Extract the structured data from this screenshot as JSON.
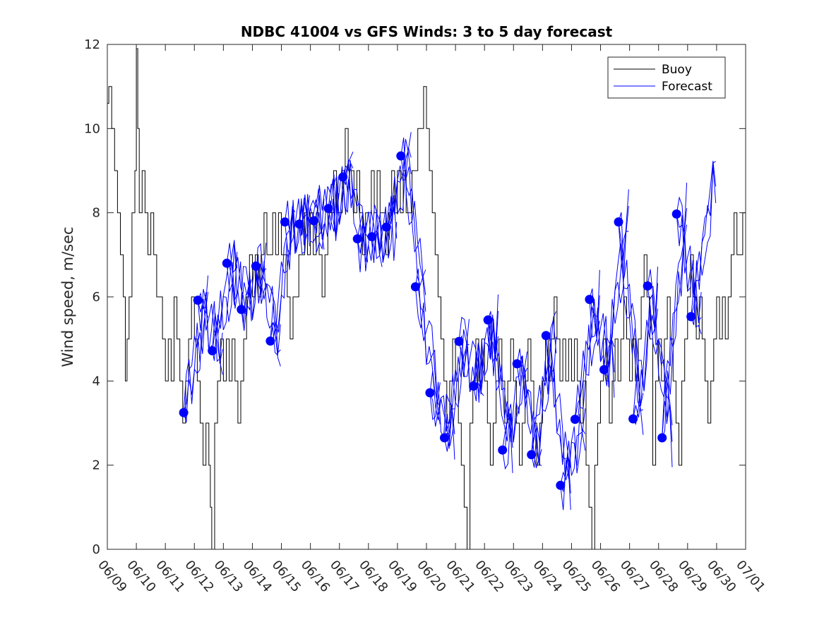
{
  "chart_data": {
    "type": "line",
    "title": "NDBC 41004 vs GFS Winds: 3 to 5 day forecast",
    "xlabel": "",
    "ylabel": "Wind speed, m/sec",
    "x_unit": "day index (0 = 06/09)",
    "x_ticks": [
      "06/09",
      "06/10",
      "06/11",
      "06/12",
      "06/13",
      "06/14",
      "06/15",
      "06/16",
      "06/17",
      "06/18",
      "06/19",
      "06/20",
      "06/21",
      "06/22",
      "06/23",
      "06/24",
      "06/25",
      "06/26",
      "06/27",
      "06/28",
      "06/29",
      "06/30",
      "07/01"
    ],
    "y_ticks": [
      "0",
      "2",
      "4",
      "6",
      "8",
      "10",
      "12"
    ],
    "xlim": [
      0,
      22
    ],
    "ylim": [
      0,
      12
    ],
    "grid": false,
    "legend": {
      "placement": "top-right",
      "entries": [
        "Buoy",
        "Forecast"
      ]
    },
    "colors": {
      "buoy": "#000000",
      "forecast": "#0000ff",
      "markers": "#0000ff"
    },
    "buoy_anchors": [
      [
        0.0,
        10.6
      ],
      [
        0.05,
        11
      ],
      [
        0.15,
        10
      ],
      [
        0.25,
        9
      ],
      [
        0.35,
        8
      ],
      [
        0.45,
        7
      ],
      [
        0.55,
        6
      ],
      [
        0.62,
        4
      ],
      [
        0.68,
        5
      ],
      [
        0.75,
        6
      ],
      [
        0.85,
        8
      ],
      [
        0.95,
        9
      ],
      [
        1.0,
        11.9
      ],
      [
        1.05,
        10
      ],
      [
        1.1,
        8
      ],
      [
        1.2,
        9
      ],
      [
        1.3,
        8
      ],
      [
        1.4,
        7
      ],
      [
        1.5,
        8
      ],
      [
        1.6,
        7
      ],
      [
        1.7,
        6
      ],
      [
        1.8,
        6
      ],
      [
        1.9,
        5
      ],
      [
        2.0,
        4
      ],
      [
        2.1,
        5
      ],
      [
        2.2,
        4
      ],
      [
        2.3,
        6
      ],
      [
        2.4,
        5
      ],
      [
        2.5,
        4
      ],
      [
        2.6,
        3
      ],
      [
        2.7,
        4
      ],
      [
        2.8,
        5
      ],
      [
        2.9,
        6
      ],
      [
        3.0,
        5
      ],
      [
        3.1,
        4
      ],
      [
        3.2,
        3
      ],
      [
        3.3,
        2
      ],
      [
        3.4,
        3
      ],
      [
        3.5,
        2
      ],
      [
        3.55,
        1
      ],
      [
        3.6,
        0
      ],
      [
        3.7,
        3
      ],
      [
        3.8,
        4
      ],
      [
        3.9,
        5
      ],
      [
        4.0,
        4
      ],
      [
        4.1,
        5
      ],
      [
        4.2,
        4
      ],
      [
        4.3,
        5
      ],
      [
        4.4,
        4
      ],
      [
        4.5,
        3
      ],
      [
        4.6,
        4
      ],
      [
        4.7,
        5
      ],
      [
        4.8,
        6
      ],
      [
        4.9,
        7
      ],
      [
        5.0,
        6
      ],
      [
        5.1,
        7
      ],
      [
        5.2,
        6
      ],
      [
        5.3,
        7
      ],
      [
        5.4,
        8
      ],
      [
        5.5,
        7
      ],
      [
        5.6,
        7
      ],
      [
        5.7,
        8
      ],
      [
        5.8,
        7
      ],
      [
        5.9,
        8
      ],
      [
        6.0,
        7
      ],
      [
        6.1,
        7
      ],
      [
        6.2,
        6
      ],
      [
        6.3,
        5
      ],
      [
        6.4,
        6
      ],
      [
        6.5,
        6
      ],
      [
        6.6,
        7
      ],
      [
        6.7,
        7
      ],
      [
        6.8,
        8
      ],
      [
        6.9,
        7
      ],
      [
        7.0,
        8
      ],
      [
        7.1,
        7
      ],
      [
        7.2,
        8
      ],
      [
        7.3,
        7
      ],
      [
        7.4,
        6
      ],
      [
        7.5,
        7
      ],
      [
        7.6,
        8
      ],
      [
        7.7,
        8
      ],
      [
        7.8,
        9
      ],
      [
        7.9,
        8
      ],
      [
        8.0,
        8
      ],
      [
        8.1,
        9
      ],
      [
        8.2,
        10
      ],
      [
        8.3,
        9
      ],
      [
        8.4,
        9
      ],
      [
        8.5,
        8
      ],
      [
        8.6,
        9
      ],
      [
        8.7,
        8
      ],
      [
        8.8,
        7
      ],
      [
        8.9,
        8
      ],
      [
        9.0,
        8
      ],
      [
        9.1,
        9
      ],
      [
        9.2,
        8
      ],
      [
        9.3,
        9
      ],
      [
        9.4,
        8
      ],
      [
        9.5,
        8
      ],
      [
        9.6,
        7
      ],
      [
        9.7,
        8
      ],
      [
        9.8,
        9
      ],
      [
        9.9,
        8
      ],
      [
        10.0,
        9
      ],
      [
        10.1,
        8
      ],
      [
        10.2,
        9
      ],
      [
        10.3,
        8
      ],
      [
        10.4,
        8
      ],
      [
        10.5,
        9
      ],
      [
        10.6,
        9
      ],
      [
        10.7,
        10
      ],
      [
        10.8,
        10
      ],
      [
        10.9,
        11
      ],
      [
        11.0,
        10
      ],
      [
        11.1,
        9
      ],
      [
        11.2,
        8
      ],
      [
        11.3,
        7
      ],
      [
        11.4,
        6
      ],
      [
        11.5,
        5
      ],
      [
        11.6,
        4
      ],
      [
        11.7,
        3
      ],
      [
        11.8,
        4
      ],
      [
        11.9,
        5
      ],
      [
        12.0,
        4
      ],
      [
        12.1,
        3
      ],
      [
        12.2,
        2
      ],
      [
        12.3,
        1
      ],
      [
        12.4,
        0
      ],
      [
        12.5,
        3
      ],
      [
        12.6,
        4
      ],
      [
        12.7,
        5
      ],
      [
        12.8,
        4
      ],
      [
        12.9,
        5
      ],
      [
        13.0,
        4
      ],
      [
        13.1,
        3
      ],
      [
        13.2,
        2
      ],
      [
        13.3,
        3
      ],
      [
        13.4,
        4
      ],
      [
        13.5,
        5
      ],
      [
        13.6,
        4
      ],
      [
        13.7,
        3
      ],
      [
        13.8,
        4
      ],
      [
        13.9,
        5
      ],
      [
        14.0,
        4
      ],
      [
        14.1,
        3
      ],
      [
        14.2,
        2
      ],
      [
        14.3,
        3
      ],
      [
        14.4,
        4
      ],
      [
        14.5,
        5
      ],
      [
        14.6,
        4
      ],
      [
        14.7,
        3
      ],
      [
        14.8,
        2
      ],
      [
        14.9,
        3
      ],
      [
        15.0,
        4
      ],
      [
        15.1,
        5
      ],
      [
        15.2,
        4
      ],
      [
        15.3,
        5
      ],
      [
        15.4,
        6
      ],
      [
        15.5,
        5
      ],
      [
        15.6,
        4
      ],
      [
        15.7,
        5
      ],
      [
        15.8,
        4
      ],
      [
        15.9,
        5
      ],
      [
        16.0,
        4
      ],
      [
        16.1,
        5
      ],
      [
        16.2,
        4
      ],
      [
        16.3,
        3
      ],
      [
        16.4,
        4
      ],
      [
        16.5,
        2
      ],
      [
        16.6,
        1
      ],
      [
        16.7,
        0
      ],
      [
        16.8,
        2
      ],
      [
        16.9,
        3
      ],
      [
        17.0,
        4
      ],
      [
        17.1,
        5
      ],
      [
        17.2,
        4
      ],
      [
        17.3,
        3
      ],
      [
        17.4,
        4
      ],
      [
        17.5,
        5
      ],
      [
        17.6,
        4
      ],
      [
        17.7,
        5
      ],
      [
        17.8,
        6
      ],
      [
        17.9,
        5
      ],
      [
        18.0,
        4
      ],
      [
        18.1,
        5
      ],
      [
        18.2,
        4
      ],
      [
        18.3,
        5
      ],
      [
        18.4,
        6
      ],
      [
        18.5,
        7
      ],
      [
        18.6,
        6
      ],
      [
        18.7,
        5
      ],
      [
        18.8,
        2
      ],
      [
        18.9,
        4
      ],
      [
        19.0,
        5
      ],
      [
        19.1,
        4
      ],
      [
        19.2,
        5
      ],
      [
        19.3,
        6
      ],
      [
        19.4,
        5
      ],
      [
        19.5,
        4
      ],
      [
        19.6,
        3
      ],
      [
        19.7,
        2
      ],
      [
        19.8,
        4
      ],
      [
        19.9,
        5
      ],
      [
        20.0,
        6
      ],
      [
        20.1,
        7
      ],
      [
        20.2,
        6
      ],
      [
        20.3,
        5
      ],
      [
        20.4,
        6
      ],
      [
        20.5,
        5
      ],
      [
        20.6,
        4
      ],
      [
        20.7,
        3
      ],
      [
        20.8,
        4
      ],
      [
        20.9,
        5
      ],
      [
        21.0,
        6
      ],
      [
        21.1,
        5
      ],
      [
        21.2,
        6
      ],
      [
        21.3,
        5
      ],
      [
        21.4,
        6
      ],
      [
        21.5,
        7
      ],
      [
        21.6,
        8
      ],
      [
        21.7,
        7
      ],
      [
        21.8,
        7
      ],
      [
        21.9,
        8
      ],
      [
        22.0,
        8
      ]
    ],
    "forecast_markers": [
      [
        2.63,
        3.25
      ],
      [
        3.12,
        5.92
      ],
      [
        3.62,
        4.72
      ],
      [
        4.12,
        6.8
      ],
      [
        4.62,
        5.7
      ],
      [
        5.12,
        6.73
      ],
      [
        5.62,
        4.95
      ],
      [
        6.12,
        7.78
      ],
      [
        6.62,
        7.73
      ],
      [
        7.12,
        7.81
      ],
      [
        7.62,
        8.1
      ],
      [
        8.12,
        8.85
      ],
      [
        8.62,
        7.38
      ],
      [
        9.12,
        7.43
      ],
      [
        9.62,
        7.66
      ],
      [
        10.12,
        9.35
      ],
      [
        10.62,
        6.24
      ],
      [
        11.12,
        3.72
      ],
      [
        11.62,
        2.65
      ],
      [
        12.12,
        4.94
      ],
      [
        12.62,
        3.88
      ],
      [
        13.12,
        5.45
      ],
      [
        13.62,
        2.36
      ],
      [
        14.12,
        4.41
      ],
      [
        14.62,
        2.25
      ],
      [
        15.12,
        5.08
      ],
      [
        15.62,
        1.52
      ],
      [
        16.12,
        3.09
      ],
      [
        16.62,
        5.94
      ],
      [
        17.12,
        4.27
      ],
      [
        17.62,
        7.78
      ],
      [
        18.12,
        3.1
      ],
      [
        18.62,
        6.26
      ],
      [
        19.12,
        2.65
      ],
      [
        19.62,
        7.97
      ],
      [
        20.12,
        5.53
      ]
    ]
  }
}
